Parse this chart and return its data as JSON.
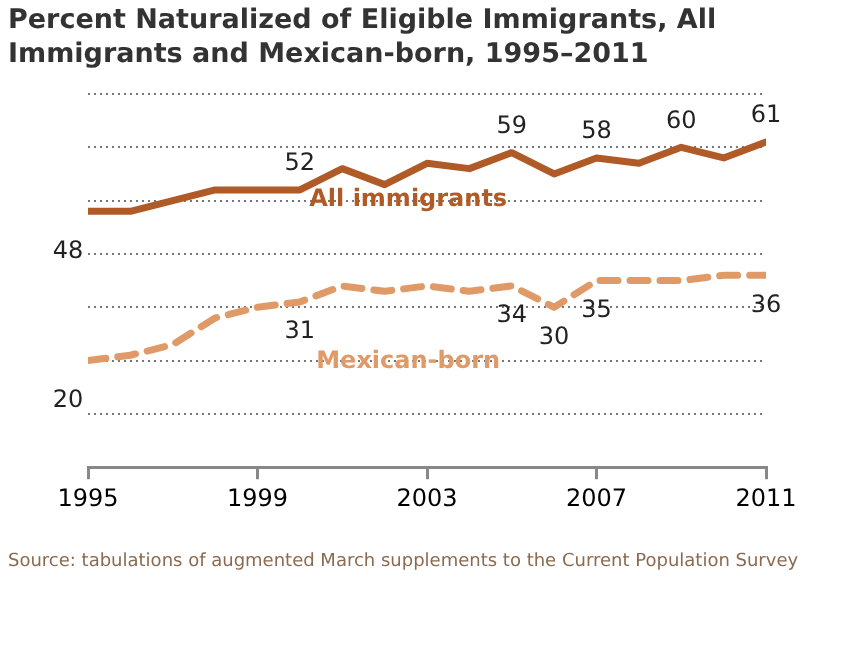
{
  "chart_data": {
    "type": "line",
    "title": "Percent Naturalized of Eligible Immigrants, All Immigrants and Mexican-born, 1995–2011",
    "x": [
      1995,
      1996,
      1997,
      1998,
      1999,
      2000,
      2001,
      2002,
      2003,
      2004,
      2005,
      2006,
      2007,
      2008,
      2009,
      2010,
      2011
    ],
    "xlim": [
      1995,
      2011
    ],
    "xticks": [
      1995,
      1999,
      2003,
      2007,
      2011
    ],
    "ylim": [
      0,
      70
    ],
    "yticks": [
      {
        "value": 10,
        "label": null
      },
      {
        "value": 20,
        "label": null
      },
      {
        "value": 30,
        "label": null
      },
      {
        "value": 40,
        "label": null
      },
      {
        "value": 50,
        "label": null
      },
      {
        "value": 60,
        "label": null
      },
      {
        "value": 70,
        "label": null
      }
    ],
    "tick_labels": "x",
    "grid": "y",
    "legend": false,
    "marker": "none",
    "series": [
      {
        "name": "All immigrants",
        "color": "#b05a28",
        "line_style": "solid",
        "values": [
          48,
          48,
          50,
          52,
          52,
          52,
          56,
          53,
          57,
          56,
          59,
          55,
          58,
          57,
          60,
          58,
          61
        ],
        "value_labels": [
          "48",
          null,
          null,
          null,
          null,
          "52",
          null,
          null,
          null,
          null,
          "59",
          null,
          "58",
          null,
          "60",
          null,
          "61"
        ]
      },
      {
        "name": "Mexican-born",
        "color": "#e09a68",
        "line_style": "dashed",
        "values": [
          20,
          21,
          23,
          28,
          30,
          31,
          34,
          33,
          34,
          33,
          34,
          30,
          35,
          35,
          35,
          36,
          36
        ],
        "value_labels": [
          "20",
          null,
          null,
          null,
          null,
          "31",
          null,
          null,
          null,
          null,
          "34",
          "30",
          "35",
          null,
          null,
          null,
          "36"
        ]
      }
    ],
    "annotations": [
      "Source: tabulations of augmented March supplements to the Current Population Survey"
    ]
  }
}
